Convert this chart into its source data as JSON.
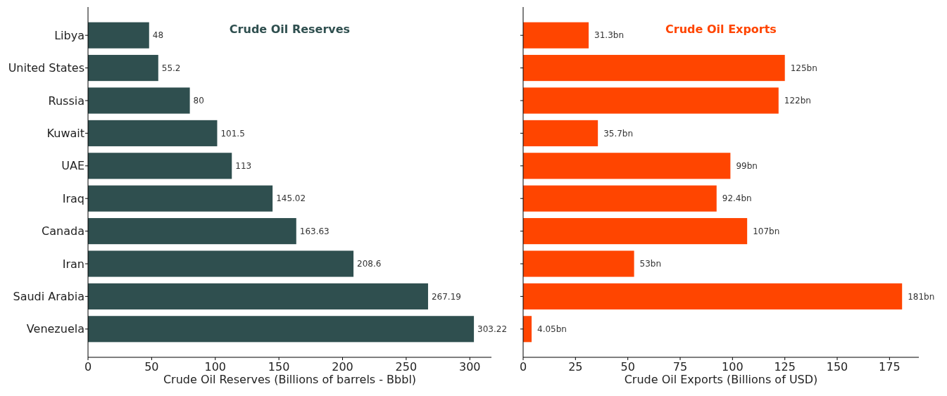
{
  "chart_data": [
    {
      "type": "bar",
      "orientation": "horizontal",
      "title": "Crude Oil Reserves",
      "xlabel": "Crude Oil Reserves (Billions of barrels - Bbbl)",
      "categories": [
        "Libya",
        "United States",
        "Russia",
        "Kuwait",
        "UAE",
        "Iraq",
        "Canada",
        "Iran",
        "Saudi Arabia",
        "Venezuela"
      ],
      "values": [
        48,
        55.2,
        80,
        101.5,
        113,
        145.02,
        163.63,
        208.6,
        267.19,
        303.22
      ],
      "color": "#2f4f4f",
      "xlim": [
        0,
        317
      ],
      "xticks": [
        0,
        50,
        100,
        150,
        200,
        250,
        300
      ],
      "data_labels": true,
      "grid": false,
      "legend": false
    },
    {
      "type": "bar",
      "orientation": "horizontal",
      "title": "Crude Oil Exports",
      "xlabel": "Crude Oil Exports (Billions of USD)",
      "categories": [
        null,
        null,
        null,
        null,
        null,
        null,
        null,
        null,
        null,
        null
      ],
      "values": [
        31.3,
        125,
        122,
        35.7,
        99,
        92.4,
        107,
        53,
        181,
        4.05
      ],
      "value_labels": [
        "31.3bn",
        "125bn",
        "122bn",
        "35.7bn",
        "99bn",
        "92.4bn",
        "107bn",
        "53bn",
        "181bn",
        "4.05bn"
      ],
      "color": "#ff4500",
      "xlim": [
        0,
        189
      ],
      "xticks": [
        0,
        25,
        50,
        75,
        100,
        125,
        150,
        175
      ],
      "tick_labels": "x",
      "grid": false,
      "legend": false
    }
  ]
}
